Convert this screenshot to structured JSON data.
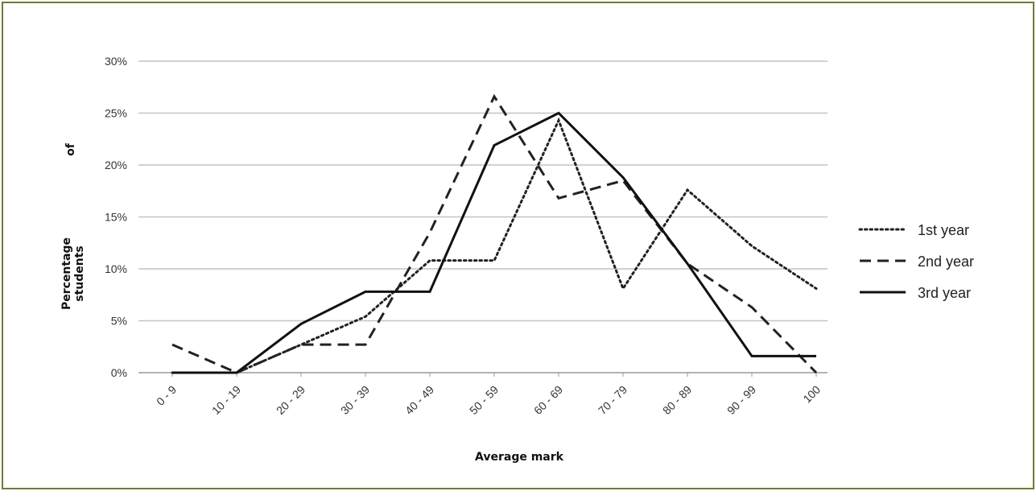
{
  "chart_data": {
    "type": "line",
    "title": "",
    "xlabel": "Average mark",
    "ylabel_line1": "Percentage",
    "ylabel_line2": "students",
    "ylabel_fragment": "of",
    "categories": [
      "0 - 9",
      "10 - 19",
      "20 - 29",
      "30 - 39",
      "40 - 49",
      "50 - 59",
      "60 - 69",
      "70 - 79",
      "80 - 89",
      "90 - 99",
      "100"
    ],
    "y_ticks": [
      "0%",
      "5%",
      "10%",
      "15%",
      "20%",
      "25%",
      "30%"
    ],
    "ylim": [
      0,
      30
    ],
    "y_unit": "%",
    "grid": "horizontal",
    "legend_position": "right",
    "series": [
      {
        "name": "1st year",
        "style": "dotted",
        "color": "#222222",
        "values": [
          0,
          0,
          2.7,
          5.4,
          10.8,
          10.8,
          24.3,
          8.1,
          17.6,
          12.2,
          8.1
        ]
      },
      {
        "name": "2nd year",
        "style": "dashed",
        "color": "#222222",
        "values": [
          2.7,
          0,
          2.7,
          2.7,
          13.5,
          26.6,
          16.8,
          18.5,
          10.5,
          6.3,
          0
        ]
      },
      {
        "name": "3rd year",
        "style": "solid",
        "color": "#111111",
        "values": [
          0,
          0,
          4.7,
          7.8,
          7.8,
          21.9,
          25.0,
          18.8,
          10.5,
          1.6,
          1.6
        ]
      }
    ]
  }
}
